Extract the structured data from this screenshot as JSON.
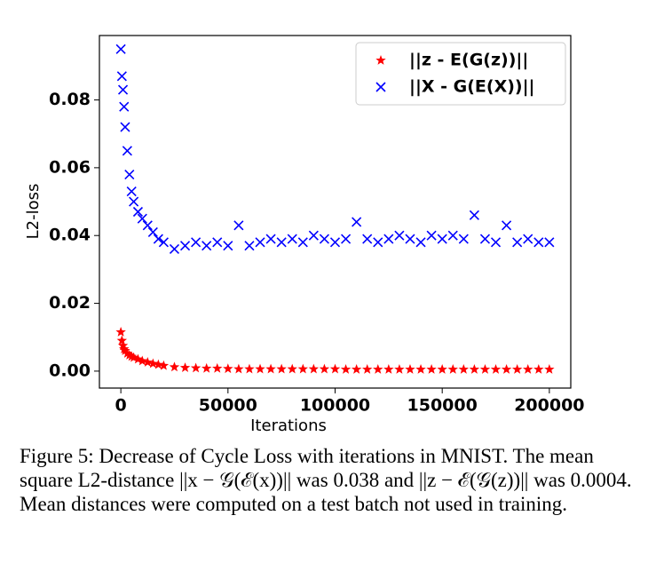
{
  "chart_data": {
    "type": "scatter",
    "xlabel": "Iterations",
    "ylabel": "L2-loss",
    "x": [
      0,
      500,
      1000,
      1500,
      2000,
      3000,
      4000,
      5000,
      6000,
      8000,
      10000,
      12500,
      15000,
      17500,
      20000,
      25000,
      30000,
      35000,
      40000,
      45000,
      50000,
      55000,
      60000,
      65000,
      70000,
      75000,
      80000,
      85000,
      90000,
      95000,
      100000,
      105000,
      110000,
      115000,
      120000,
      125000,
      130000,
      135000,
      140000,
      145000,
      150000,
      155000,
      160000,
      165000,
      170000,
      175000,
      180000,
      185000,
      190000,
      195000,
      200000
    ],
    "series": [
      {
        "name": "||z - E(G(z))||",
        "color": "#ff0000",
        "marker": "star",
        "values": [
          0.0115,
          0.009,
          0.0075,
          0.0065,
          0.006,
          0.0052,
          0.0047,
          0.0043,
          0.004,
          0.0035,
          0.003,
          0.0026,
          0.0022,
          0.0019,
          0.0016,
          0.0012,
          0.001,
          0.0009,
          0.0008,
          0.0008,
          0.0007,
          0.0006,
          0.0006,
          0.0006,
          0.0006,
          0.0006,
          0.0006,
          0.0006,
          0.0006,
          0.0006,
          0.0006,
          0.0005,
          0.0005,
          0.0005,
          0.0005,
          0.0005,
          0.0005,
          0.0005,
          0.0005,
          0.0005,
          0.0005,
          0.0005,
          0.0005,
          0.0005,
          0.0005,
          0.0005,
          0.0005,
          0.0005,
          0.0005,
          0.0005,
          0.0005
        ]
      },
      {
        "name": "||X - G(E(X))||",
        "color": "#0000ff",
        "marker": "x",
        "values": [
          0.095,
          0.087,
          0.083,
          0.078,
          0.072,
          0.065,
          0.058,
          0.053,
          0.05,
          0.047,
          0.045,
          0.043,
          0.041,
          0.039,
          0.038,
          0.036,
          0.037,
          0.038,
          0.037,
          0.038,
          0.037,
          0.043,
          0.037,
          0.038,
          0.039,
          0.038,
          0.039,
          0.038,
          0.04,
          0.039,
          0.038,
          0.039,
          0.044,
          0.039,
          0.038,
          0.039,
          0.04,
          0.039,
          0.038,
          0.04,
          0.039,
          0.04,
          0.039,
          0.046,
          0.039,
          0.038,
          0.043,
          0.038,
          0.039,
          0.038,
          0.038
        ]
      }
    ],
    "xlim": [
      -10000,
      210000
    ],
    "xticks": [
      0,
      50000,
      100000,
      150000,
      200000
    ],
    "ylim": [
      -0.005,
      0.099
    ],
    "yticks": [
      {
        "value": 0,
        "label": "0.00"
      },
      {
        "value": 0.02,
        "label": "0.02"
      },
      {
        "value": 0.04,
        "label": "0.04"
      },
      {
        "value": 0.06,
        "label": "0.06"
      },
      {
        "value": 0.08,
        "label": "0.08"
      }
    ],
    "grid": false,
    "legend": "upper right"
  },
  "caption": {
    "label": "Figure 5:",
    "text": "Decrease of Cycle Loss with iterations in MNIST. The mean square L2-distance ||x − 𝒢(ℰ(x))|| was 0.038 and ||z − ℰ(𝒢(z))|| was 0.0004. Mean distances were computed on a test batch not used in training."
  }
}
